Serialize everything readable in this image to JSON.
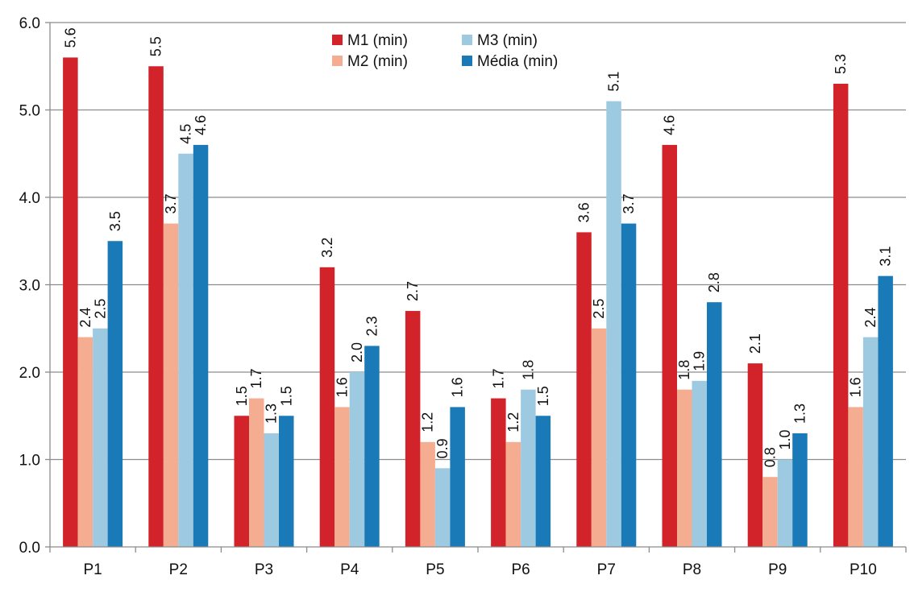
{
  "chart_data": {
    "type": "bar",
    "categories": [
      "P1",
      "P2",
      "P3",
      "P4",
      "P5",
      "P6",
      "P7",
      "P8",
      "P9",
      "P10"
    ],
    "series": [
      {
        "name": "M1 (min)",
        "color": "#d2232a",
        "values": [
          5.6,
          5.5,
          1.5,
          3.2,
          2.7,
          1.7,
          3.6,
          4.6,
          2.1,
          5.3
        ],
        "labels": [
          "5.6",
          "5.5",
          "1.5",
          "3.2",
          "2.7",
          "1.7",
          "3.6",
          "4.6",
          "2.1",
          "5.3"
        ]
      },
      {
        "name": "M2 (min)",
        "color": "#f4ad90",
        "values": [
          2.4,
          3.7,
          1.7,
          1.6,
          1.2,
          1.2,
          2.5,
          1.8,
          0.8,
          1.6
        ],
        "labels": [
          "2.4",
          "3.7",
          "1.7",
          "1.6",
          "1.2",
          "1.2",
          "2.5",
          "1.8",
          "0.8",
          "1.6"
        ]
      },
      {
        "name": "M3 (min)",
        "color": "#9ecae1",
        "values": [
          2.5,
          4.5,
          1.3,
          2.0,
          0.9,
          1.8,
          5.1,
          1.9,
          1.0,
          2.4
        ],
        "labels": [
          "2.5",
          "4.5",
          "1.3",
          "2.0",
          "0.9",
          "1.8",
          "5.1",
          "1.9",
          "1.0",
          "2.4"
        ]
      },
      {
        "name": "Média (min)",
        "color": "#1a7ab8",
        "values": [
          3.5,
          4.6,
          1.5,
          2.3,
          1.6,
          1.5,
          3.7,
          2.8,
          1.3,
          3.1
        ],
        "labels": [
          "3.5",
          "4.6",
          "1.5",
          "2.3",
          "1.6",
          "1.5",
          "3.7",
          "2.8",
          "1.3",
          "3.1"
        ]
      }
    ],
    "ylim": [
      0,
      6
    ],
    "yticks": [
      "0.0",
      "1.0",
      "2.0",
      "3.0",
      "4.0",
      "5.0",
      "6.0"
    ],
    "grid": true,
    "legend_position": "top-center",
    "title": "",
    "xlabel": "",
    "ylabel": ""
  }
}
